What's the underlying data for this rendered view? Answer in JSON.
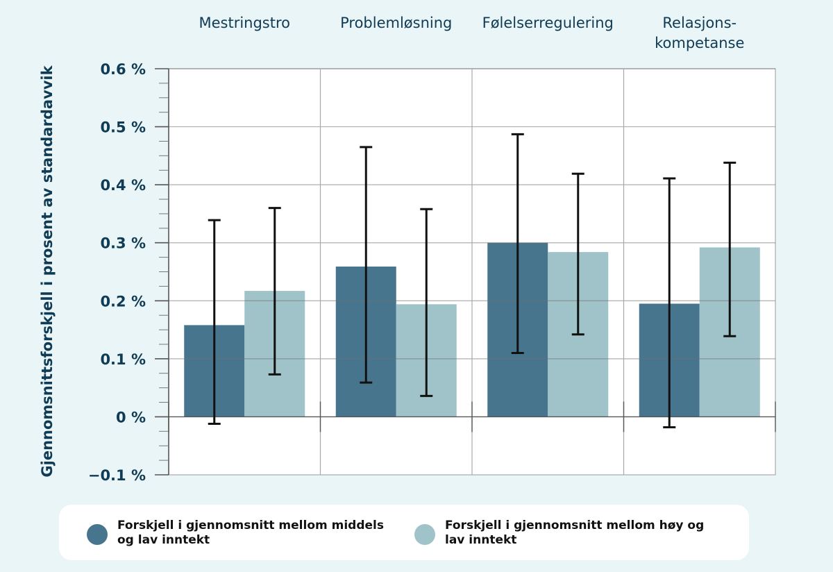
{
  "chart_data": {
    "type": "bar",
    "title": "",
    "xlabel": "",
    "ylabel": "Gjennomsnittsforskjell i prosent av standardavvik",
    "categories": [
      [
        "Mestringstro"
      ],
      [
        "Problemløsning"
      ],
      [
        "Følelserregulering"
      ],
      [
        "Relasjons-",
        "kompetanse"
      ]
    ],
    "category_names": [
      "Mestringstro",
      "Problemløsning",
      "Følelserregulering",
      "Relasjonskompetanse"
    ],
    "ylim": [
      -0.1,
      0.6
    ],
    "yticks": [
      -0.1,
      0,
      0.1,
      0.2,
      0.3,
      0.4,
      0.5,
      0.6
    ],
    "ytick_labels": [
      "−0.1 %",
      "0 %",
      "0.1 %",
      "0.2 %",
      "0.3 %",
      "0.4 %",
      "0.5 %",
      "0.6 %"
    ],
    "minor_ticks_per_major": 3,
    "grid": true,
    "legend_position": "bottom",
    "series": [
      {
        "name": "Forskjell i gjennomsnitt mellom middels og lav inntekt",
        "color": "#48758e",
        "values": [
          0.158,
          0.259,
          0.3,
          0.195
        ],
        "error_low": [
          -0.012,
          0.059,
          0.11,
          -0.018
        ],
        "error_high": [
          0.339,
          0.465,
          0.487,
          0.411
        ]
      },
      {
        "name": "Forskjell i gjennomsnitt mellom høy og lav inntekt",
        "color": "#9fc3c9",
        "values": [
          0.217,
          0.194,
          0.284,
          0.292
        ],
        "error_low": [
          0.073,
          0.036,
          0.142,
          0.139
        ],
        "error_high": [
          0.36,
          0.358,
          0.419,
          0.438
        ]
      }
    ]
  },
  "legend": {
    "items": [
      {
        "line1": "Forskjell i gjennomsnitt mellom middels",
        "line2": "og lav inntekt",
        "color": "#48758e"
      },
      {
        "line1": "Forskjell i gjennomsnitt mellom høy og",
        "line2": "lav inntekt",
        "color": "#9fc3c9"
      }
    ]
  },
  "colors": {
    "background": "#e9f5f6",
    "text": "#0f3b55",
    "error_bar": "#111111",
    "grid": "#9a9a9a"
  }
}
